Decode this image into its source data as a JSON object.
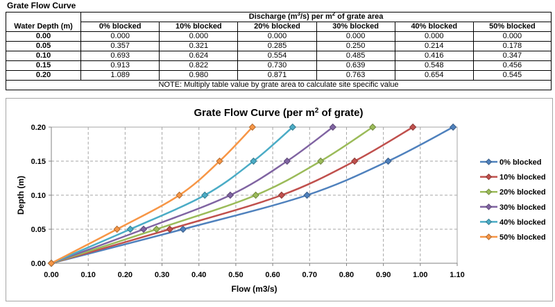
{
  "table": {
    "title": "Grate Flow Curve",
    "spanning_header": {
      "part1": "Discharge (m",
      "sup1": "3",
      "part2": "/s) per m",
      "sup2": "2",
      "part3": " of grate area"
    },
    "row_header": "Water Depth (m)",
    "col_headers": [
      "0% blocked",
      "10% blocked",
      "20% blocked",
      "30% blocked",
      "40% blocked",
      "50% blocked"
    ],
    "rows": [
      {
        "depth": "0.00",
        "values": [
          "0.000",
          "0.000",
          "0.000",
          "0.000",
          "0.000",
          "0.000"
        ]
      },
      {
        "depth": "0.05",
        "values": [
          "0.357",
          "0.321",
          "0.285",
          "0.250",
          "0.214",
          "0.178"
        ]
      },
      {
        "depth": "0.10",
        "values": [
          "0.693",
          "0.624",
          "0.554",
          "0.485",
          "0.416",
          "0.347"
        ]
      },
      {
        "depth": "0.15",
        "values": [
          "0.913",
          "0.822",
          "0.730",
          "0.639",
          "0.548",
          "0.456"
        ]
      },
      {
        "depth": "0.20",
        "values": [
          "1.089",
          "0.980",
          "0.871",
          "0.763",
          "0.654",
          "0.545"
        ]
      }
    ],
    "note": "NOTE: Multiply table value by grate area to calculate site specific value"
  },
  "chart_data": {
    "type": "line",
    "title_parts": {
      "part1": "Grate Flow Curve (per m",
      "sup": "2",
      "part2": " of grate)"
    },
    "xlabel": "Flow (m3/s)",
    "ylabel": "Depth (m)",
    "xlim": [
      0.0,
      1.1
    ],
    "ylim": [
      0.0,
      0.2
    ],
    "x_ticks": [
      "0.00",
      "0.10",
      "0.20",
      "0.30",
      "0.40",
      "0.50",
      "0.60",
      "0.70",
      "0.80",
      "0.90",
      "1.00",
      "1.10"
    ],
    "y_ticks": [
      "0.00",
      "0.05",
      "0.10",
      "0.15",
      "0.20"
    ],
    "grid": "dashed",
    "legend_position": "right",
    "depths": [
      0.0,
      0.05,
      0.1,
      0.15,
      0.2
    ],
    "series": [
      {
        "name": "0% blocked",
        "color": "#4F81BD",
        "values": [
          0.0,
          0.357,
          0.693,
          0.913,
          1.089
        ]
      },
      {
        "name": "10% blocked",
        "color": "#C0504D",
        "values": [
          0.0,
          0.321,
          0.624,
          0.822,
          0.98
        ]
      },
      {
        "name": "20% blocked",
        "color": "#9BBB59",
        "values": [
          0.0,
          0.285,
          0.554,
          0.73,
          0.871
        ]
      },
      {
        "name": "30% blocked",
        "color": "#8064A2",
        "values": [
          0.0,
          0.25,
          0.485,
          0.639,
          0.763
        ]
      },
      {
        "name": "40% blocked",
        "color": "#4BACC6",
        "values": [
          0.0,
          0.214,
          0.416,
          0.548,
          0.654
        ]
      },
      {
        "name": "50% blocked",
        "color": "#F79646",
        "values": [
          0.0,
          0.178,
          0.347,
          0.456,
          0.545
        ]
      }
    ],
    "colors": {
      "axis": "#808080",
      "plot_border": "#a6a6a6",
      "gridline": "#a6a6a6",
      "title_text": "#000000"
    }
  }
}
